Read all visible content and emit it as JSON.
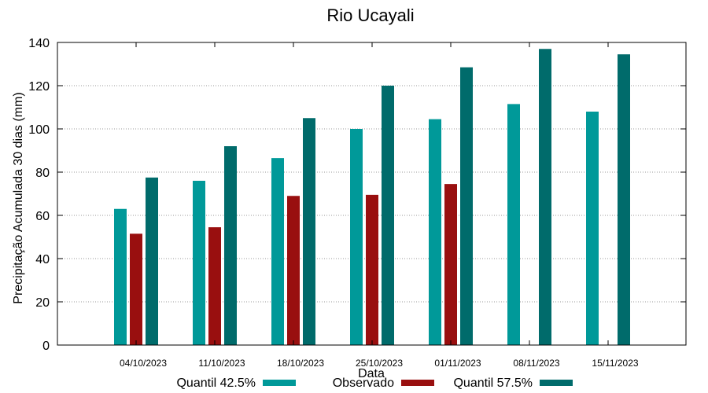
{
  "chart_data": {
    "type": "bar",
    "title": "Rio Ucayali",
    "xlabel": "Data",
    "ylabel": "Precipitação Acumulada 30 dias (mm)",
    "ylim": [
      0,
      140
    ],
    "yticks": [
      0,
      20,
      40,
      60,
      80,
      100,
      120,
      140
    ],
    "grid": true,
    "legend_position": "bottom",
    "categories": [
      "04/10/2023",
      "11/10/2023",
      "18/10/2023",
      "25/10/2023",
      "01/11/2023",
      "08/11/2023",
      "15/11/2023"
    ],
    "series": [
      {
        "name": "Quantil 42.5%",
        "color": "#009999",
        "values": [
          63,
          76,
          86.5,
          100,
          104.5,
          111.5,
          108
        ]
      },
      {
        "name": "Observado",
        "color": "#990f0f",
        "values": [
          51.5,
          54.5,
          69,
          69.5,
          74.5,
          null,
          null
        ]
      },
      {
        "name": "Quantil 57.5%",
        "color": "#006b6b",
        "values": [
          77.5,
          92,
          105,
          120,
          128.5,
          137,
          134.5
        ]
      }
    ]
  }
}
